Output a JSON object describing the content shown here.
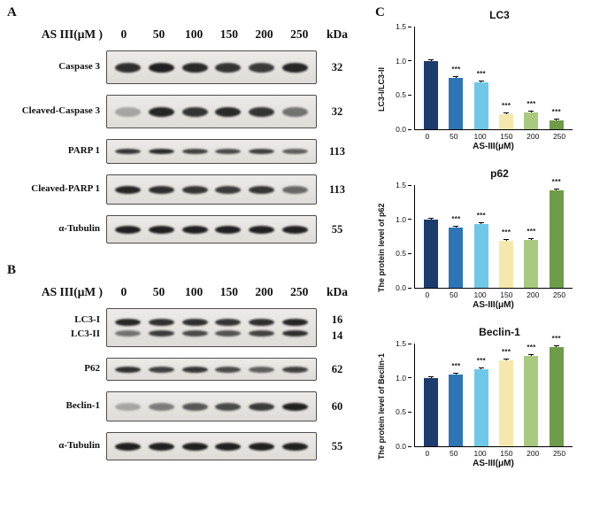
{
  "panelA": {
    "label": "A",
    "header": {
      "title": "AS III(μM )",
      "doses": [
        "0",
        "50",
        "100",
        "150",
        "200",
        "250"
      ],
      "kda": "kDa"
    },
    "rows": [
      {
        "name": [
          "Caspase 3"
        ],
        "kda": [
          "32"
        ],
        "h": 38,
        "bands": [
          {
            "h": 11,
            "o": [
              0.88,
              0.95,
              0.9,
              0.85,
              0.82,
              0.92
            ]
          }
        ]
      },
      {
        "name": [
          "Cleaved-Caspase 3"
        ],
        "kda": [
          "32"
        ],
        "h": 38,
        "bands": [
          {
            "h": 11,
            "o": [
              0.3,
              0.92,
              0.85,
              0.9,
              0.85,
              0.55
            ]
          }
        ]
      },
      {
        "name": [
          "PARP 1"
        ],
        "kda": [
          "113"
        ],
        "h": 28,
        "bands": [
          {
            "h": 6,
            "o": [
              0.85,
              0.9,
              0.8,
              0.75,
              0.8,
              0.65
            ]
          }
        ]
      },
      {
        "name": [
          "Cleaved-PARP 1"
        ],
        "kda": [
          "113"
        ],
        "h": 34,
        "bands": [
          {
            "h": 9,
            "o": [
              0.92,
              0.88,
              0.85,
              0.82,
              0.85,
              0.6
            ]
          }
        ]
      },
      {
        "name": [
          "α-Tubulin"
        ],
        "kda": [
          "55"
        ],
        "h": 32,
        "bands": [
          {
            "h": 9,
            "o": [
              0.95,
              0.95,
              0.95,
              0.95,
              0.95,
              0.95
            ]
          }
        ]
      }
    ]
  },
  "panelB": {
    "label": "B",
    "header": {
      "title": "AS III(μM )",
      "doses": [
        "0",
        "50",
        "100",
        "150",
        "200",
        "250"
      ],
      "kda": "kDa"
    },
    "rows": [
      {
        "name": [
          "LC3-I",
          "LC3-II"
        ],
        "kda": [
          "16",
          "14"
        ],
        "h": 44,
        "bands": [
          {
            "h": 8,
            "o": [
              0.92,
              0.88,
              0.88,
              0.85,
              0.88,
              0.92
            ]
          },
          {
            "h": 7,
            "o": [
              0.55,
              0.82,
              0.75,
              0.7,
              0.78,
              0.88
            ]
          }
        ]
      },
      {
        "name": [
          "P62"
        ],
        "kda": [
          "62"
        ],
        "h": 26,
        "bands": [
          {
            "h": 7,
            "o": [
              0.88,
              0.8,
              0.85,
              0.75,
              0.65,
              0.8
            ]
          }
        ]
      },
      {
        "name": [
          "Beclin-1"
        ],
        "kda": [
          "60"
        ],
        "h": 34,
        "bands": [
          {
            "h": 9,
            "o": [
              0.3,
              0.5,
              0.68,
              0.75,
              0.82,
              0.95
            ]
          }
        ]
      },
      {
        "name": [
          "α-Tubulin"
        ],
        "kda": [
          "55"
        ],
        "h": 32,
        "bands": [
          {
            "h": 9,
            "o": [
              0.95,
              0.95,
              0.95,
              0.95,
              0.95,
              0.95
            ]
          }
        ]
      }
    ]
  },
  "panelC": {
    "label": "C",
    "bar_colors": [
      "#1c3c6e",
      "#2e75b6",
      "#70c8e8",
      "#f6e8ad",
      "#a8c97e",
      "#6e9c49"
    ]
  },
  "chart_data": [
    {
      "type": "bar",
      "title": "LC3",
      "ylabel": "LC3-I/LC3-II",
      "xlabel": "AS-III(μM)",
      "categories": [
        "0",
        "50",
        "100",
        "150",
        "200",
        "250"
      ],
      "values": [
        1.0,
        0.75,
        0.68,
        0.22,
        0.25,
        0.13
      ],
      "errors": [
        0.015,
        0.02,
        0.02,
        0.015,
        0.02,
        0.015
      ],
      "sig": [
        "",
        "***",
        "***",
        "***",
        "***",
        "***"
      ],
      "ylim": [
        0,
        1.5
      ],
      "yticks": [
        0,
        0.5,
        1,
        1.5
      ],
      "grid": false,
      "legend": false
    },
    {
      "type": "bar",
      "title": "p62",
      "ylabel": "The protein level of p62",
      "xlabel": "AS-III(μM)",
      "categories": [
        "0",
        "50",
        "100",
        "150",
        "200",
        "250"
      ],
      "values": [
        1.0,
        0.88,
        0.93,
        0.68,
        0.7,
        1.42
      ],
      "errors": [
        0.015,
        0.02,
        0.02,
        0.015,
        0.015,
        0.03
      ],
      "sig": [
        "",
        "***",
        "***",
        "***",
        "***",
        "***"
      ],
      "ylim": [
        0,
        1.5
      ],
      "yticks": [
        0,
        0.5,
        1,
        1.5
      ],
      "grid": false,
      "legend": false
    },
    {
      "type": "bar",
      "title": "Beclin-1",
      "ylabel": "The protein level of Beclin-1",
      "xlabel": "AS-III(μM)",
      "categories": [
        "0",
        "50",
        "100",
        "150",
        "200",
        "250"
      ],
      "values": [
        1.0,
        1.05,
        1.12,
        1.25,
        1.32,
        1.45
      ],
      "errors": [
        0.015,
        0.02,
        0.02,
        0.02,
        0.02,
        0.03
      ],
      "sig": [
        "",
        "***",
        "***",
        "***",
        "***",
        "***"
      ],
      "ylim": [
        0,
        1.5
      ],
      "yticks": [
        0,
        0.5,
        1,
        1.5
      ],
      "grid": false,
      "legend": false
    }
  ]
}
